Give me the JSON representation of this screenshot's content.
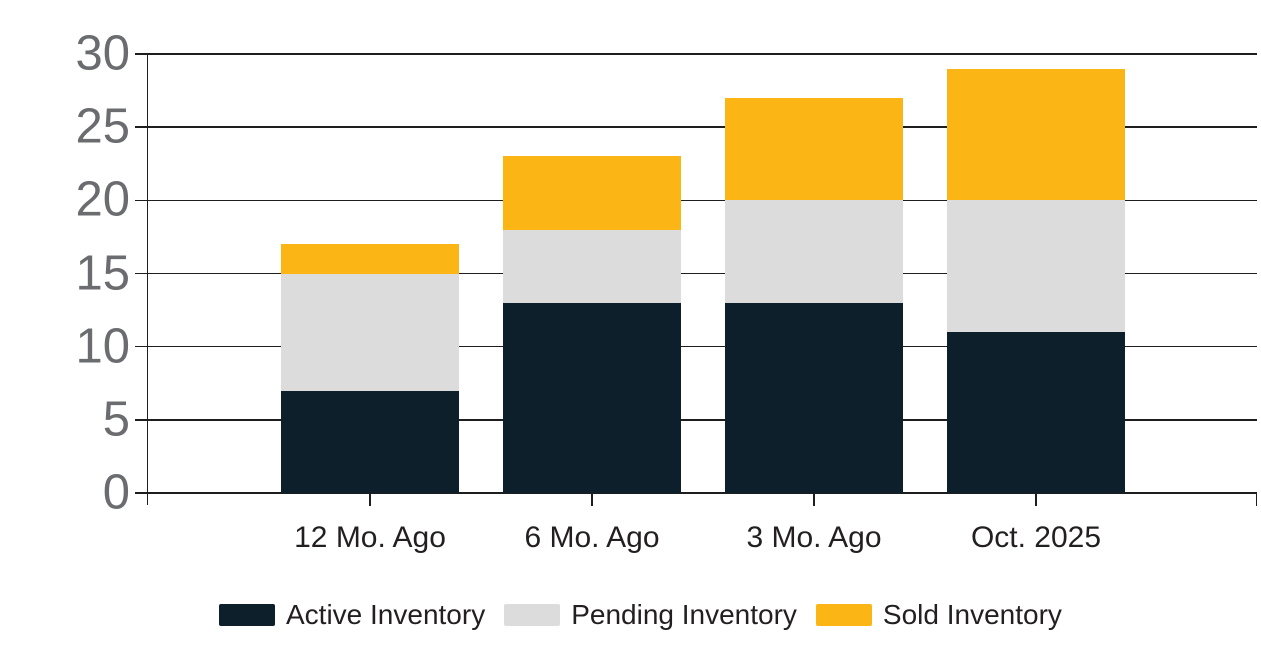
{
  "chart_data": {
    "type": "bar",
    "stacked": true,
    "title": "",
    "xlabel": "",
    "ylabel": "",
    "categories": [
      "12 Mo. Ago",
      "6 Mo. Ago",
      "3 Mo. Ago",
      "Oct. 2025"
    ],
    "series": [
      {
        "name": "Active Inventory",
        "color": "#0d1f2b",
        "values": [
          7,
          13,
          13,
          11
        ]
      },
      {
        "name": "Pending Inventory",
        "color": "#dcdcdc",
        "values": [
          8,
          5,
          7,
          9
        ]
      },
      {
        "name": "Sold Inventory",
        "color": "#fbb615",
        "values": [
          2,
          5,
          7,
          9
        ]
      }
    ],
    "stack_totals": [
      17,
      23,
      27,
      29
    ],
    "ylim": [
      0,
      30
    ],
    "yticks": [
      0,
      5,
      10,
      15,
      20,
      25,
      30
    ],
    "grid": true,
    "legend_position": "bottom-left"
  },
  "colors": {
    "background": "#ffffff",
    "axis_line": "#1e1e1e",
    "y_tick_label": "#6b6c70",
    "x_category_label": "#231f20",
    "legend_text": "#231f20"
  }
}
